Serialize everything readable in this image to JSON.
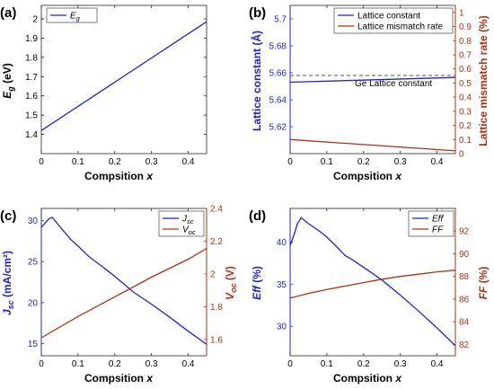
{
  "colors": {
    "blue": "#2222cc",
    "red": "#b03010",
    "black": "#000000",
    "dash": "#555555"
  },
  "chart_data": [
    {
      "id": "a",
      "panel_label": "(a)",
      "type": "line",
      "xlabel": "Compsition",
      "xlabel_var": "x",
      "ylabel_main": "E",
      "ylabel_sub": "g",
      "ylabel_unit": " (eV)",
      "xlim": [
        0,
        0.45
      ],
      "ylim": [
        1.3,
        2.07
      ],
      "xticks": [
        0,
        0.1,
        0.2,
        0.3,
        0.4
      ],
      "yticks": [
        1.4,
        1.5,
        1.6,
        1.7,
        1.8,
        1.9,
        2.0
      ],
      "yticklabels": [
        "1.4",
        "1.5",
        "1.6",
        "1.7",
        "1.8",
        "1.9",
        "2"
      ],
      "legend": [
        {
          "main": "E",
          "sub": "g",
          "color": "blue"
        }
      ],
      "series": [
        {
          "color": "blue",
          "x": [
            0,
            0.45
          ],
          "y": [
            1.42,
            1.985
          ]
        }
      ]
    },
    {
      "id": "b",
      "panel_label": "(b)",
      "type": "line",
      "xlabel": "Compsition",
      "xlabel_var": "x",
      "ylabel": "Lattice constant (Å)",
      "ylabel_right": "Lattice mismatch rate (%)",
      "xlim": [
        0,
        0.45
      ],
      "ylim": [
        5.6,
        5.71
      ],
      "ylim_right": [
        0,
        1.05
      ],
      "xticks": [
        0,
        0.1,
        0.2,
        0.3,
        0.4
      ],
      "yticks": [
        5.62,
        5.64,
        5.66,
        5.68,
        5.7
      ],
      "yticklabels": [
        "5.62",
        "5.64",
        "5.66",
        "5.68",
        "5.7"
      ],
      "yticks_right": [
        0,
        0.1,
        0.2,
        0.3,
        0.4,
        0.5,
        0.6,
        0.7,
        0.8,
        0.9,
        1.0
      ],
      "yticklabels_right": [
        "0",
        "0.1",
        "0.2",
        "0.3",
        "0.4",
        "0.5",
        "0.6",
        "0.7",
        "0.8",
        "0.9",
        "1"
      ],
      "annotation": "Ge Lattice constant",
      "reference_line": 5.658,
      "legend": [
        {
          "main": "Lattice constant",
          "color": "blue"
        },
        {
          "main": "Lattice mismatch rate",
          "color": "red"
        }
      ],
      "series": [
        {
          "color": "blue",
          "axis": "left",
          "x": [
            0,
            0.45
          ],
          "y": [
            5.653,
            5.6565
          ]
        },
        {
          "color": "red",
          "axis": "right",
          "x": [
            0,
            0.45
          ],
          "y": [
            0.1,
            0.02
          ]
        }
      ]
    },
    {
      "id": "c",
      "panel_label": "(c)",
      "type": "line",
      "xlabel": "Compsition",
      "xlabel_var": "x",
      "ylabel_main": "J",
      "ylabel_sub": "sc",
      "ylabel_unit": " (mA/cm²)",
      "ylabel_right_main": "V",
      "ylabel_right_sub": "oc",
      "ylabel_right_unit": " (V)",
      "xlim": [
        0,
        0.45
      ],
      "ylim": [
        13.5,
        31.5
      ],
      "ylim_right": [
        1.5,
        2.4
      ],
      "xticks": [
        0,
        0.1,
        0.2,
        0.3,
        0.4
      ],
      "yticks": [
        15,
        20,
        25,
        30
      ],
      "yticklabels": [
        "15",
        "20",
        "25",
        "30"
      ],
      "yticks_right": [
        1.6,
        1.8,
        2.0,
        2.2,
        2.4
      ],
      "yticklabels_right": [
        "1.6",
        "1.8",
        "2",
        "2.2",
        "2.4"
      ],
      "legend": [
        {
          "main": "J",
          "sub": "sc",
          "color": "blue"
        },
        {
          "main": "V",
          "sub": "oc",
          "color": "red"
        }
      ],
      "series": [
        {
          "color": "blue",
          "axis": "left",
          "x": [
            0,
            0.01,
            0.02,
            0.03,
            0.05,
            0.08,
            0.1,
            0.13,
            0.16,
            0.18,
            0.2,
            0.25,
            0.3,
            0.35,
            0.4,
            0.45
          ],
          "y": [
            29.2,
            29.7,
            30.2,
            30.4,
            29.3,
            27.7,
            26.9,
            25.6,
            24.6,
            23.9,
            23.2,
            21.3,
            19.8,
            18.2,
            16.5,
            14.9
          ]
        },
        {
          "color": "red",
          "axis": "right",
          "x": [
            0,
            0.1,
            0.2,
            0.3,
            0.4,
            0.45
          ],
          "y": [
            1.61,
            1.74,
            1.86,
            1.98,
            2.09,
            2.155
          ]
        }
      ]
    },
    {
      "id": "d",
      "panel_label": "(d)",
      "type": "line",
      "xlabel": "Compsition",
      "xlabel_var": "x",
      "ylabel_main": "Eff",
      "ylabel_unit": " (%)",
      "ylabel_right_main": "FF",
      "ylabel_right_unit": " (%)",
      "xlim": [
        0,
        0.45
      ],
      "ylim": [
        26.5,
        44
      ],
      "ylim_right": [
        81,
        94
      ],
      "xticks": [
        0,
        0.1,
        0.2,
        0.3,
        0.4
      ],
      "yticks": [
        30,
        35,
        40
      ],
      "yticklabels": [
        "30",
        "35",
        "40"
      ],
      "yticks_right": [
        82,
        84,
        86,
        88,
        90,
        92
      ],
      "yticklabels_right": [
        "82",
        "84",
        "86",
        "88",
        "90",
        "92"
      ],
      "legend": [
        {
          "main": "Eff",
          "color": "blue"
        },
        {
          "main": "FF",
          "color": "red"
        }
      ],
      "series": [
        {
          "color": "blue",
          "axis": "left",
          "x": [
            0,
            0.01,
            0.02,
            0.03,
            0.05,
            0.08,
            0.1,
            0.13,
            0.15,
            0.17,
            0.19,
            0.22,
            0.25,
            0.3,
            0.35,
            0.4,
            0.45
          ],
          "y": [
            39.6,
            40.8,
            42.2,
            42.9,
            42.2,
            41.3,
            40.6,
            39.3,
            38.4,
            37.9,
            37.3,
            36.4,
            35.5,
            33.7,
            31.8,
            29.8,
            27.7
          ]
        },
        {
          "color": "red",
          "axis": "right",
          "x": [
            0,
            0.05,
            0.1,
            0.15,
            0.2,
            0.25,
            0.3,
            0.35,
            0.4,
            0.45
          ],
          "y": [
            86.1,
            86.5,
            86.85,
            87.15,
            87.45,
            87.75,
            88.0,
            88.2,
            88.4,
            88.55
          ]
        }
      ]
    }
  ]
}
